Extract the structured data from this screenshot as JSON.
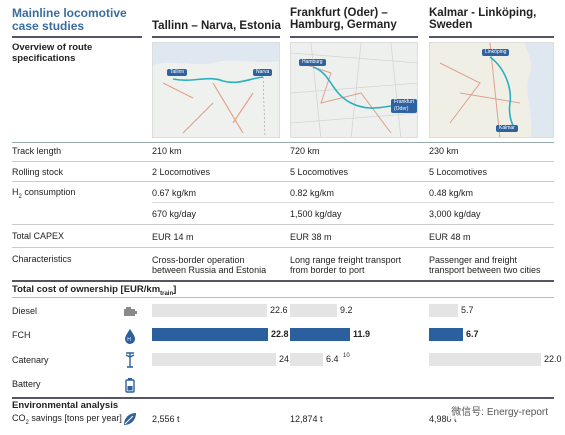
{
  "header": {
    "title": "Mainline locomotive  case studies",
    "subtitle": "Overview of route specifications"
  },
  "columns": [
    {
      "name": "Tallinn – Narva, Estonia",
      "map_labels": [
        "Tallinn",
        "Narva"
      ]
    },
    {
      "name": "Frankfurt (Oder) – Hamburg, Germany",
      "map_labels": [
        "Hamburg",
        "Frankfurt (Oder)"
      ]
    },
    {
      "name": "Kalmar - Linköping, Sweden",
      "map_labels": [
        "Linköping",
        "Kalmar"
      ]
    }
  ],
  "rows": [
    {
      "label": "Track length",
      "values": [
        "210 km",
        "720 km",
        "230 km"
      ]
    },
    {
      "label": "Rolling stock",
      "values": [
        "2 Locomotives",
        "5 Locomotives",
        "5 Locomotives"
      ]
    },
    {
      "label_prefix": "H",
      "label_sub": "2",
      "label_suffix": " consumption",
      "values": [
        "0.67 kg/km",
        "0.82 kg/km",
        "0.48 kg/km"
      ]
    },
    {
      "label": "",
      "values": [
        "670 kg/day",
        "1,500 kg/day",
        "3,000 kg/day"
      ]
    },
    {
      "label": "Total CAPEX",
      "values": [
        "EUR 14 m",
        "EUR 38 m",
        "EUR 48 m"
      ]
    },
    {
      "label": "Characteristics",
      "values": [
        "Cross-border operation between Russia and Estonia",
        "Long range freight transport from border to port",
        "Passenger and freight transport between two cities"
      ]
    }
  ],
  "tco": {
    "title_prefix": "Total cost of ownership [EUR/km",
    "title_sub": "train",
    "title_suffix": "]",
    "max": 24.4,
    "colors": {
      "highlight": "#2b5f9e",
      "neutral": "#e4e4e4"
    },
    "rows": [
      {
        "label": "Diesel",
        "icon": "diesel-engine-icon",
        "values": [
          22.6,
          9.2,
          5.7
        ],
        "texts": [
          "22.6",
          "9.2",
          "5.7"
        ],
        "highlight": false
      },
      {
        "label": "FCH",
        "icon": "hydrogen-drop-icon",
        "values": [
          22.8,
          11.9,
          6.7
        ],
        "texts": [
          "22.8",
          "11.9",
          "6.7"
        ],
        "highlight": true
      },
      {
        "label": "Catenary",
        "icon": "catenary-pylon-icon",
        "values": [
          24.4,
          6.4,
          22.0
        ],
        "texts": [
          "24.4",
          "6.4",
          "22.0"
        ],
        "note": [
          "",
          "10",
          ""
        ],
        "highlight": false
      },
      {
        "label": "Battery",
        "icon": "battery-icon",
        "values": [
          null,
          null,
          null
        ],
        "texts": [
          "",
          "",
          ""
        ],
        "highlight": false
      }
    ]
  },
  "env": {
    "title": "Environmental analysis",
    "row_prefix": "CO",
    "row_sub": "2",
    "row_suffix": " savings [tons per year]",
    "values": [
      "2,556 t",
      "12,874 t",
      "4,980 t"
    ]
  },
  "watermark": "微信号: Energy-report"
}
